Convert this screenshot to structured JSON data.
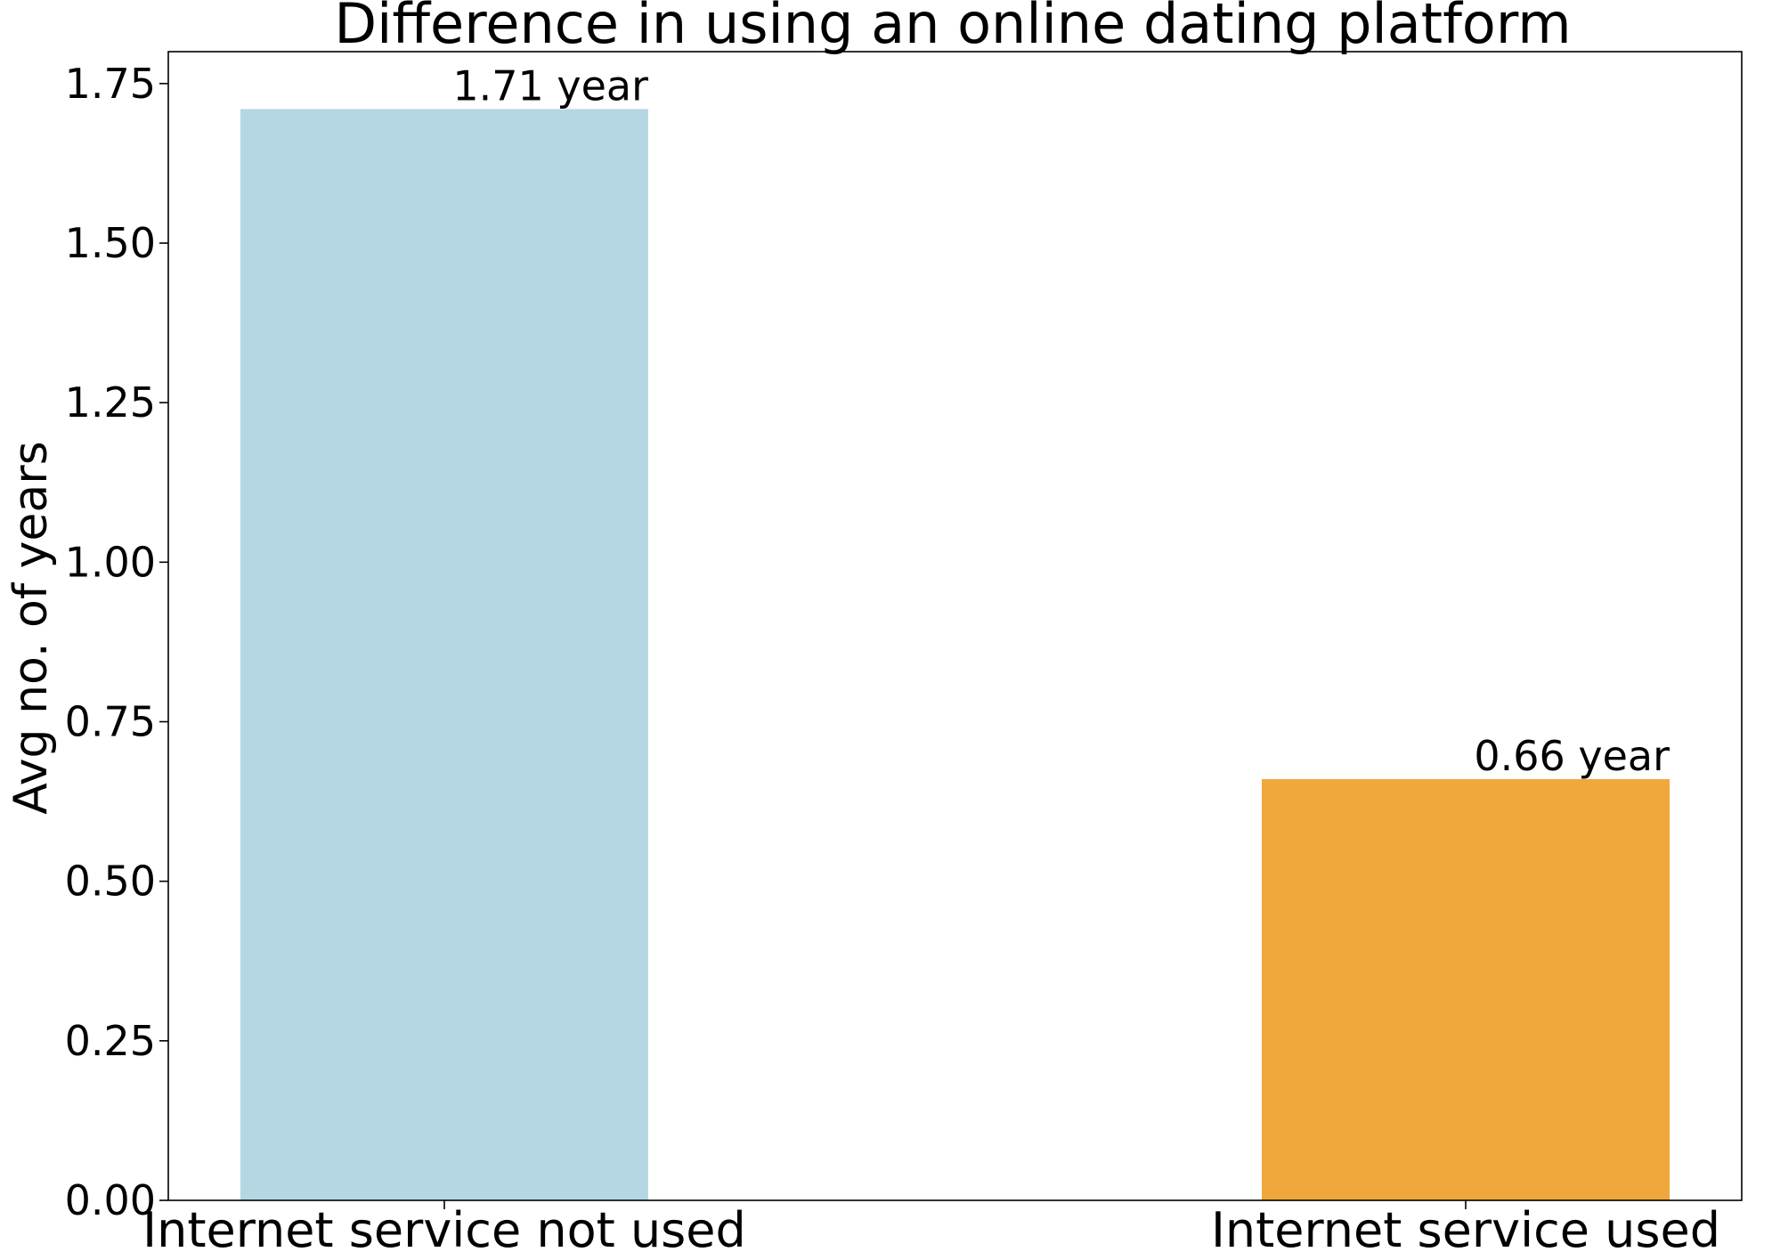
{
  "chart_data": {
    "type": "bar",
    "title": "Difference in using an online dating platform",
    "xlabel": "",
    "ylabel": "Avg no. of years",
    "categories": [
      "Internet service not used",
      "Internet service used"
    ],
    "values": [
      1.71,
      0.66
    ],
    "data_labels": [
      "1.71 year",
      "0.66 year"
    ],
    "colors": [
      "#b5d7e3",
      "#f0a83c"
    ],
    "ylim": [
      0,
      1.8
    ],
    "yticks": [
      0.0,
      0.25,
      0.5,
      0.75,
      1.0,
      1.25,
      1.5,
      1.75
    ],
    "ytick_labels": [
      "0.00",
      "0.25",
      "0.50",
      "0.75",
      "1.00",
      "1.25",
      "1.50",
      "1.75"
    ],
    "grid": false,
    "legend": "none"
  }
}
